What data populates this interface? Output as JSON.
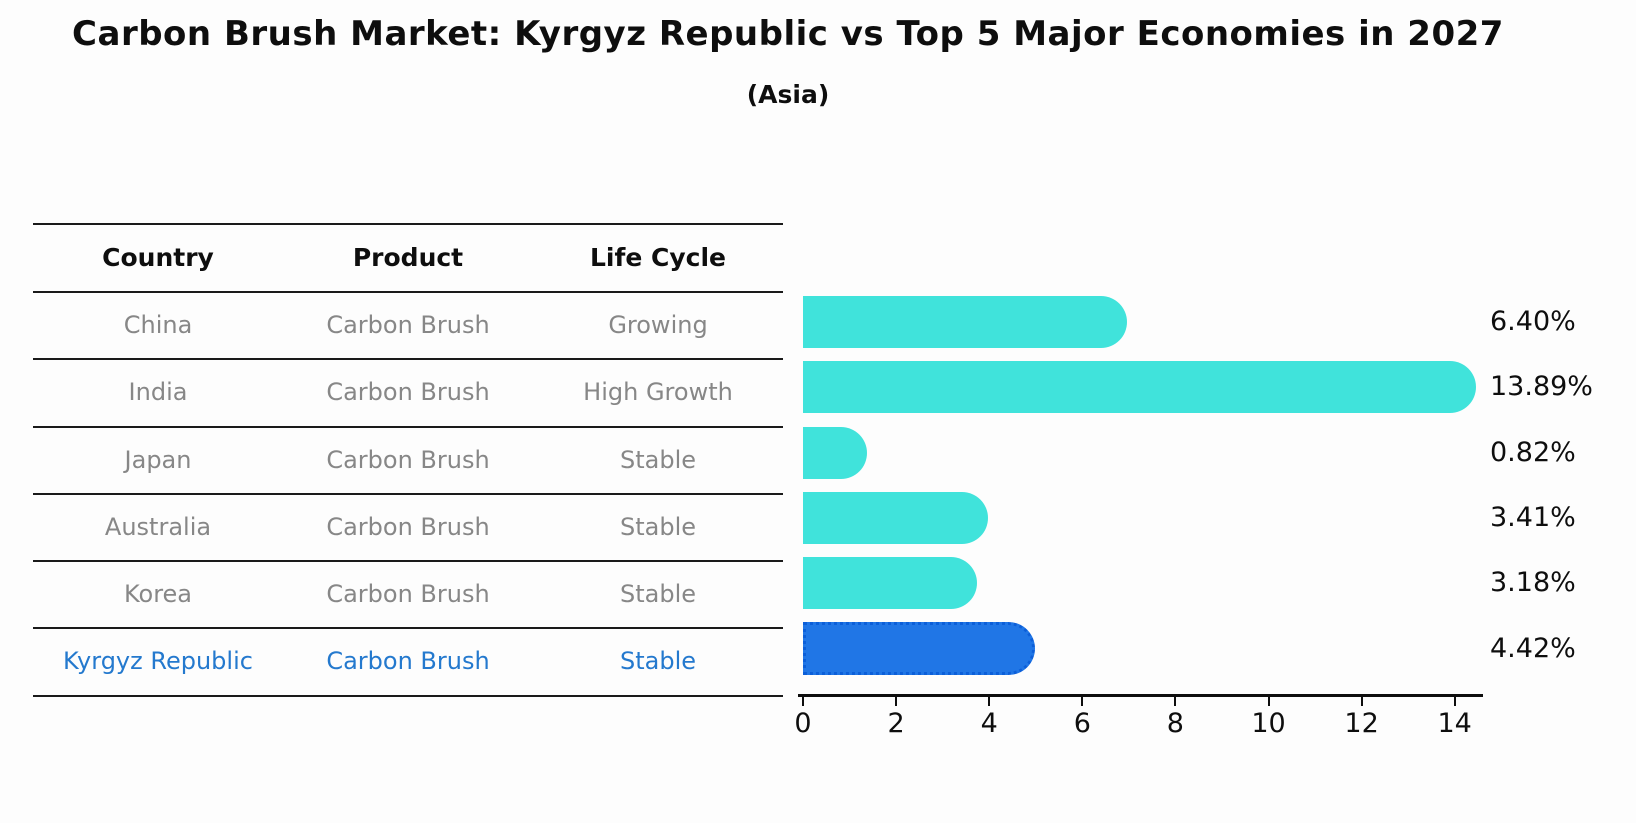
{
  "title": "Carbon Brush Market: Kyrgyz Republic vs Top 5 Major Economies in 2027",
  "subtitle": "(Asia)",
  "table": {
    "headers": {
      "country": "Country",
      "product": "Product",
      "life_cycle": "Life Cycle"
    },
    "rows": [
      {
        "country": "China",
        "product": "Carbon Brush",
        "life_cycle": "Growing",
        "highlight": false
      },
      {
        "country": "India",
        "product": "Carbon Brush",
        "life_cycle": "High Growth",
        "highlight": false
      },
      {
        "country": "Japan",
        "product": "Carbon Brush",
        "life_cycle": "Stable",
        "highlight": false
      },
      {
        "country": "Australia",
        "product": "Carbon Brush",
        "life_cycle": "Stable",
        "highlight": false
      },
      {
        "country": "Korea",
        "product": "Carbon Brush",
        "life_cycle": "Stable",
        "highlight": false
      },
      {
        "country": "Kyrgyz Republic",
        "product": "Carbon Brush",
        "life_cycle": "Stable",
        "highlight": true
      }
    ]
  },
  "chart_data": {
    "type": "bar",
    "orientation": "horizontal",
    "title": "Carbon Brush Market: Kyrgyz Republic vs Top 5 Major Economies in 2027 (Asia)",
    "categories": [
      "China",
      "India",
      "Japan",
      "Australia",
      "Korea",
      "Kyrgyz Republic"
    ],
    "values": [
      6.4,
      13.89,
      0.82,
      3.41,
      3.18,
      4.42
    ],
    "value_labels": [
      "6.40%",
      "13.89%",
      "0.82%",
      "3.41%",
      "3.18%",
      "4.42%"
    ],
    "unit": "%",
    "xlim": [
      -0.1,
      14.6
    ],
    "xticks": [
      0,
      2,
      4,
      6,
      8,
      10,
      12,
      14
    ],
    "xtick_labels": [
      "0",
      "2",
      "4",
      "6",
      "8",
      "10",
      "12",
      "14"
    ],
    "grid": false,
    "legend": "none",
    "highlight_index": 5,
    "bar_color": "#40e3db",
    "highlight_color": "#2076e6"
  },
  "colors": {
    "background": "#fdfdfd",
    "bar": "#40e3db",
    "highlight_bar": "#2076e6",
    "highlight_border": "#0c5fd9",
    "highlight_text": "#2479ce",
    "body_text": "#878787",
    "heading_text": "#0e0e0e",
    "line": "#1a1a1a"
  }
}
